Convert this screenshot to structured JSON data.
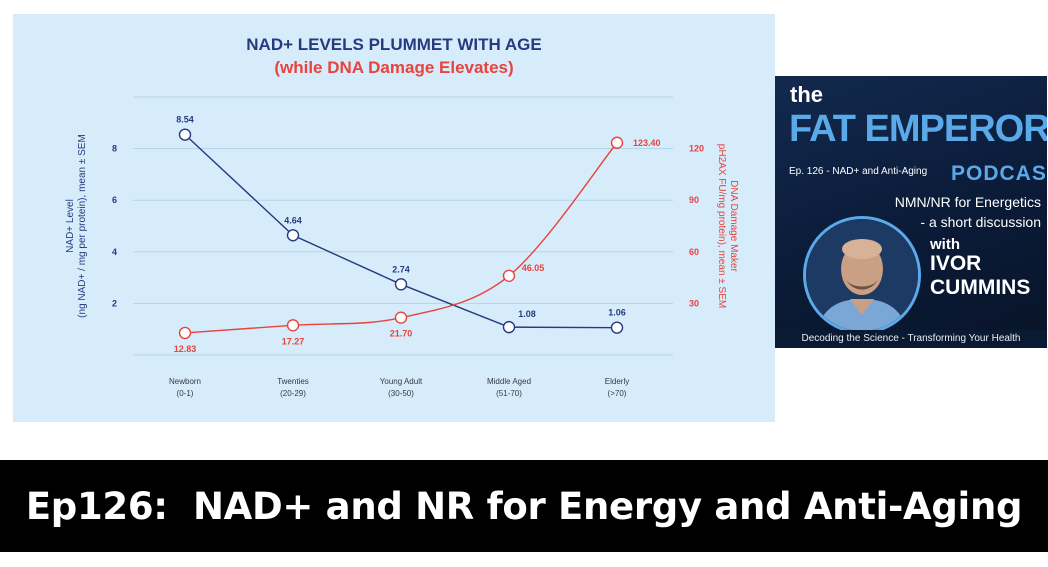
{
  "chart_data": {
    "type": "line",
    "title": "NAD+ LEVELS PLUMMET WITH AGE",
    "subtitle": "(while DNA Damage Elevates)",
    "categories": [
      "Newborn",
      "Twenties",
      "Young Adult",
      "Middle Aged",
      "Elderly"
    ],
    "category_ranges": [
      "(0-1)",
      "(20-29)",
      "(30-50)",
      "(51-70)",
      "(>70)"
    ],
    "ylabel_left": [
      "NAD+ Level",
      "(ng NAD+ / mg per protein), mean ± SEM"
    ],
    "ylabel_right": [
      "DNA Damage Maker",
      "pH2AX FU/mg protein), mean ± SEM"
    ],
    "ylim_left": [
      0,
      10
    ],
    "ylim_right": [
      0,
      150
    ],
    "yticks_left": [
      2,
      4,
      6,
      8
    ],
    "yticks_right": [
      30,
      60,
      90,
      120
    ],
    "series": [
      {
        "axis": "left",
        "color": "#273a80",
        "values": [
          8.54,
          4.64,
          2.74,
          1.08,
          1.06
        ],
        "labels": [
          "8.54",
          "4.64",
          "2.74",
          "1.08",
          "1.06"
        ]
      },
      {
        "axis": "right",
        "color": "#e8433d",
        "values": [
          12.83,
          17.27,
          21.7,
          46.05,
          123.4
        ],
        "labels": [
          "12.83",
          "17.27",
          "21.70",
          "46.05",
          "123.40"
        ]
      }
    ],
    "grid": true
  },
  "podcast_card": {
    "the": "the",
    "brand": "FAT EMPEROR",
    "podcast": "PODCAST",
    "episode": "Ep. 126 - NAD+ and Anti-Aging",
    "topic_line1": "NMN/NR for Energetics",
    "topic_line2": "- a short discussion",
    "with": "with",
    "host_first": "IVOR",
    "host_last": "CUMMINS",
    "footer": "Decoding the Science - Transforming Your Health"
  },
  "banner": {
    "title": "Ep126:  NAD+ and NR for Energy and Anti-Aging"
  }
}
